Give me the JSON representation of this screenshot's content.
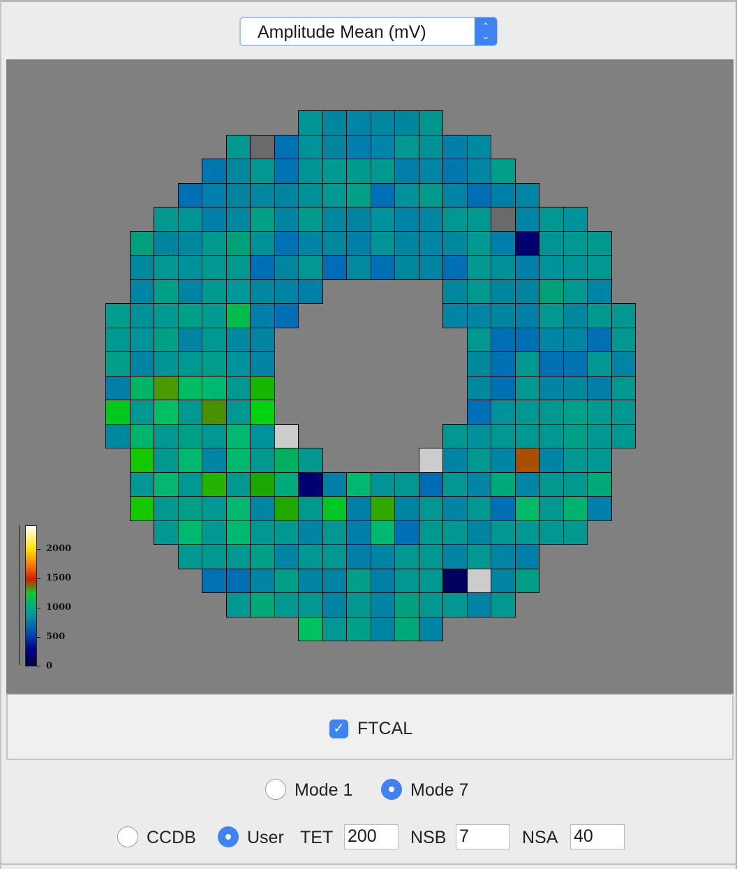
{
  "dropdown": {
    "selected": "Amplitude Mean (mV)",
    "arrows_icon": "up-down-chevron-icon"
  },
  "heatmap": {
    "scale_ticks": [
      "2000",
      "1500",
      "1000",
      "500",
      "0"
    ],
    "rows": [
      {
        "start": 8,
        "colors": [
          "#009496",
          "#00869f",
          "#0086a4",
          "#00869f",
          "#00869f",
          "#009690"
        ]
      },
      {
        "start": 5,
        "colors": [
          "#009890",
          "#6a6a6a",
          "#0072b4",
          "#00929a",
          "#00869f",
          "#007ead",
          "#0084a7",
          "#009890",
          "#009198",
          "#0080a8",
          "#008aa0"
        ]
      },
      {
        "start": 4,
        "colors": [
          "#0076b0",
          "#00889f",
          "#009890",
          "#0074b2",
          "#009496",
          "#009a92",
          "#009a8e",
          "#00988f",
          "#0080a8",
          "#0086a4",
          "#0078ae",
          "#0086a3",
          "#00a088"
        ]
      },
      {
        "start": 3,
        "colors": [
          "#0070b6",
          "#0080aa",
          "#00849f",
          "#00889f",
          "#00849f",
          "#009198",
          "#009a92",
          "#00a088",
          "#0070b6",
          "#00929a",
          "#009a8e",
          "#0084a4",
          "#0070b6",
          "#0080a8",
          "#0086a4"
        ]
      },
      {
        "start": 2,
        "colors": [
          "#009890",
          "#009495",
          "#0080a8",
          "#00889f",
          "#00a088",
          "#0084a4",
          "#009a8e",
          "#00889f",
          "#00849f",
          "#00929a",
          "#0084a5",
          "#0086a3",
          "#009890",
          "#009890",
          "#6a6a6a",
          "#0086a4",
          "#009890",
          "#00929a"
        ]
      },
      {
        "start": 1,
        "colors": [
          "#00a07c",
          "#00849f",
          "#00889f",
          "#009890",
          "#00a079",
          "#009198",
          "#0072b4",
          "#0084a4",
          "#00889f",
          "#0080a8",
          "#009496",
          "#00849f",
          "#0086a4",
          "#00889f",
          "#009a92",
          "#0080a8",
          "#00006e",
          "#009497",
          "#009892",
          "#009890"
        ]
      },
      {
        "start": 1,
        "colors": [
          "#00889f",
          "#009890",
          "#00929a",
          "#009890",
          "#009890",
          "#0070b6",
          "#00869f",
          "#009890",
          "#006cb8",
          "#008aa0",
          "#0070b4",
          "#00889f",
          "#0084a4",
          "#0070b4",
          "#009890",
          "#009198",
          "#0080a8",
          "#00929a",
          "#009496",
          "#009890"
        ]
      },
      {
        "start": 1,
        "colors": [
          "#0086a4",
          "#00a088",
          "#0084a4",
          "#009890",
          "#009898",
          "#00889f",
          "#0084a4",
          "#0080a8",
          null,
          null,
          null,
          null,
          null,
          "#00889f",
          "#009890",
          "#00869f",
          "#00849f",
          "#00a079",
          "#009890",
          "#0084a4"
        ]
      },
      {
        "start": 0,
        "colors": [
          "#009c8c",
          "#009198",
          "#009a92",
          "#00a088",
          "#009a8e",
          "#00bc4c",
          "#0080a8",
          "#0070b4",
          null,
          null,
          null,
          null,
          null,
          null,
          "#0086a4",
          "#0086a4",
          "#00869f",
          "#0080a8",
          "#009890",
          "#00889f",
          "#009890",
          "#009890"
        ]
      },
      {
        "start": 0,
        "colors": [
          "#009890",
          "#00949a",
          "#00a086",
          "#0084a4",
          "#009890",
          "#00889f",
          "#00849f",
          null,
          null,
          null,
          null,
          null,
          null,
          null,
          null,
          "#009890",
          "#0070b4",
          "#0070b4",
          "#0086a4",
          "#0086a4",
          "#0070b4",
          "#009890"
        ]
      },
      {
        "start": 0,
        "colors": [
          "#00a088",
          "#0084a4",
          "#009496",
          "#009890",
          "#009c8c",
          "#00929a",
          "#0086a4",
          null,
          null,
          null,
          null,
          null,
          null,
          null,
          null,
          "#00889f",
          "#0070b4",
          "#009890",
          "#0070b4",
          "#0074b2",
          "#009890",
          "#0084a4"
        ]
      },
      {
        "start": 0,
        "colors": [
          "#0080a8",
          "#00b466",
          "#4a9b00",
          "#00bc62",
          "#00b870",
          "#009890",
          "#14b800",
          null,
          null,
          null,
          null,
          null,
          null,
          null,
          null,
          "#00889f",
          "#0070b4",
          "#009890",
          "#0086a4",
          "#00889f",
          "#0080a8",
          "#009890"
        ]
      },
      {
        "start": 0,
        "colors": [
          "#00c81c",
          "#009890",
          "#00c064",
          "#009890",
          "#4a9100",
          "#009890",
          "#00d410",
          null,
          null,
          null,
          null,
          null,
          null,
          null,
          null,
          "#0070b6",
          "#00929a",
          "#009890",
          "#009890",
          "#00a08a",
          "#009a8e",
          "#009890"
        ]
      },
      {
        "start": 0,
        "colors": [
          "#00889f",
          "#00b470",
          "#009890",
          "#00a088",
          "#009890",
          "#00b870",
          "#00929a",
          "#cccccc",
          null,
          null,
          null,
          null,
          null,
          null,
          "#009890",
          "#00929a",
          "#009890",
          "#009890",
          "#009890",
          "#00a088",
          "#009890",
          "#009890"
        ]
      },
      {
        "start": 1,
        "colors": [
          "#14c800",
          "#009890",
          "#00b870",
          "#0084a4",
          "#00b870",
          "#009890",
          "#00b060",
          "#009890",
          null,
          null,
          null,
          null,
          "#cccccc",
          "#0084a4",
          "#009890",
          "#0084a4",
          "#a85000",
          "#0084a4",
          "#009890",
          "#009890"
        ]
      },
      {
        "start": 1,
        "colors": [
          "#009890",
          "#00b870",
          "#009890",
          "#22b400",
          "#009890",
          "#1aa800",
          "#00aa7a",
          "#000070",
          "#0080a8",
          "#00b870",
          "#009496",
          "#009890",
          "#006cb8",
          "#009890",
          "#0086a4",
          "#00aa78",
          "#0086a4",
          "#009890",
          "#009890",
          "#00aa78"
        ]
      },
      {
        "start": 1,
        "colors": [
          "#14c800",
          "#009890",
          "#00a088",
          "#009890",
          "#00b870",
          "#0086a4",
          "#20a800",
          "#009890",
          "#00c828",
          "#0080a8",
          "#30a800",
          "#0084a4",
          "#009890",
          "#0086a4",
          "#009890",
          "#0070b4",
          "#00bc6a",
          "#009890",
          "#00b470",
          "#0080a8"
        ]
      },
      {
        "start": 2,
        "colors": [
          "#009890",
          "#00b870",
          "#009890",
          "#00b870",
          "#009890",
          "#009890",
          "#0084a4",
          "#009890",
          "#0080a8",
          "#00b870",
          "#0070b6",
          "#009890",
          "#009890",
          "#0084a4",
          "#009890",
          "#009890",
          "#009890",
          "#009890"
        ]
      },
      {
        "start": 3,
        "colors": [
          "#009890",
          "#009890",
          "#009890",
          "#00a088",
          "#0084a4",
          "#009890",
          "#009890",
          "#0080a8",
          "#0084a4",
          "#009890",
          "#009890",
          "#0084a4",
          "#009890",
          "#0086a4",
          "#0080a8"
        ]
      },
      {
        "start": 4,
        "colors": [
          "#0072b4",
          "#0070b4",
          "#0086a4",
          "#00a088",
          "#0084a4",
          "#0084a4",
          "#00a088",
          "#0080a8",
          "#009890",
          "#009890",
          "#000060",
          "#cccccc",
          "#0084a4",
          "#00a088"
        ]
      },
      {
        "start": 5,
        "colors": [
          "#009890",
          "#00aa78",
          "#009890",
          "#009890",
          "#0084a4",
          "#009890",
          "#0084a4",
          "#00a080",
          "#009890",
          "#009890",
          "#0084a4",
          "#009890"
        ]
      },
      {
        "start": 8,
        "colors": [
          "#00c060",
          "#009890",
          "#00a088",
          "#0084a4",
          "#00aa78",
          "#0086a4"
        ]
      }
    ]
  },
  "panel": {
    "checkbox_label": "FTCAL",
    "checkbox_checked": true
  },
  "modes": {
    "mode1_label": "Mode 1",
    "mode7_label": "Mode 7",
    "selected": "Mode 7"
  },
  "settings": {
    "ccdb_label": "CCDB",
    "user_label": "User",
    "selected": "User",
    "tet_label": "TET",
    "tet_value": "200",
    "nsb_label": "NSB",
    "nsb_value": "7",
    "nsa_label": "NSA",
    "nsa_value": "40"
  }
}
